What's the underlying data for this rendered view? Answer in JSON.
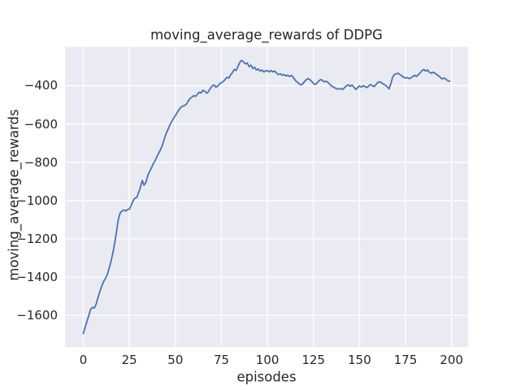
{
  "style": {
    "figure_background": "#ffffff",
    "axes_background": "#eaeaf2",
    "grid_color": "#ffffff",
    "text_color": "#262626",
    "line_color": "#4c72b0"
  },
  "chart_data": {
    "type": "line",
    "title": "moving_average_rewards of DDPG",
    "xlabel": "episodes",
    "ylabel": "moving_average_rewards",
    "grid": true,
    "legend": false,
    "xlim": [
      -9.95,
      208.95
    ],
    "ylim": [
      -1766,
      -197
    ],
    "xticks": [
      0,
      25,
      50,
      75,
      100,
      125,
      150,
      175,
      200
    ],
    "yticks": [
      -400,
      -600,
      -800,
      -1000,
      -1200,
      -1400,
      -1600
    ],
    "series": [
      {
        "name": "moving_average_rewards",
        "color": "#4c72b0",
        "x": [
          0,
          1,
          2,
          3,
          4,
          5,
          6,
          7,
          8,
          9,
          10,
          11,
          12,
          13,
          14,
          15,
          16,
          17,
          18,
          19,
          20,
          21,
          22,
          23,
          24,
          25,
          26,
          27,
          28,
          29,
          30,
          31,
          32,
          33,
          34,
          35,
          36,
          37,
          38,
          39,
          40,
          41,
          42,
          43,
          44,
          45,
          46,
          47,
          48,
          49,
          50,
          51,
          52,
          53,
          54,
          55,
          56,
          57,
          58,
          59,
          60,
          61,
          62,
          63,
          64,
          65,
          66,
          67,
          68,
          69,
          70,
          71,
          72,
          73,
          74,
          75,
          76,
          77,
          78,
          79,
          80,
          81,
          82,
          83,
          84,
          85,
          86,
          87,
          88,
          89,
          90,
          91,
          92,
          93,
          94,
          95,
          96,
          97,
          98,
          99,
          100,
          101,
          102,
          103,
          104,
          105,
          106,
          107,
          108,
          109,
          110,
          111,
          112,
          113,
          114,
          115,
          116,
          117,
          118,
          119,
          120,
          121,
          122,
          123,
          124,
          125,
          126,
          127,
          128,
          129,
          130,
          131,
          132,
          133,
          134,
          135,
          136,
          137,
          138,
          139,
          140,
          141,
          142,
          143,
          144,
          145,
          146,
          147,
          148,
          149,
          150,
          151,
          152,
          153,
          154,
          155,
          156,
          157,
          158,
          159,
          160,
          161,
          162,
          163,
          164,
          165,
          166,
          167,
          168,
          169,
          170,
          171,
          172,
          173,
          174,
          175,
          176,
          177,
          178,
          179,
          180,
          181,
          182,
          183,
          184,
          185,
          186,
          187,
          188,
          189,
          190,
          191,
          192,
          193,
          194,
          195,
          196,
          197,
          198,
          199
        ],
        "y": [
          -1695,
          -1662,
          -1631,
          -1600,
          -1568,
          -1558,
          -1562,
          -1540,
          -1506,
          -1475,
          -1448,
          -1424,
          -1408,
          -1388,
          -1355,
          -1320,
          -1276,
          -1225,
          -1165,
          -1100,
          -1065,
          -1055,
          -1050,
          -1055,
          -1048,
          -1045,
          -1025,
          -1003,
          -988,
          -985,
          -960,
          -932,
          -895,
          -920,
          -905,
          -870,
          -848,
          -830,
          -808,
          -792,
          -770,
          -752,
          -733,
          -710,
          -678,
          -650,
          -628,
          -606,
          -588,
          -570,
          -558,
          -540,
          -525,
          -513,
          -507,
          -504,
          -497,
          -480,
          -467,
          -460,
          -452,
          -456,
          -445,
          -434,
          -438,
          -424,
          -429,
          -440,
          -431,
          -414,
          -402,
          -396,
          -408,
          -403,
          -390,
          -384,
          -378,
          -368,
          -356,
          -361,
          -344,
          -331,
          -315,
          -321,
          -300,
          -279,
          -268,
          -276,
          -286,
          -281,
          -300,
          -293,
          -310,
          -304,
          -318,
          -313,
          -324,
          -318,
          -328,
          -324,
          -321,
          -328,
          -321,
          -328,
          -324,
          -335,
          -342,
          -338,
          -346,
          -342,
          -349,
          -345,
          -352,
          -346,
          -356,
          -370,
          -380,
          -388,
          -396,
          -392,
          -380,
          -370,
          -363,
          -368,
          -377,
          -388,
          -394,
          -385,
          -374,
          -368,
          -374,
          -380,
          -377,
          -384,
          -394,
          -403,
          -408,
          -414,
          -417,
          -418,
          -415,
          -420,
          -409,
          -400,
          -396,
          -403,
          -397,
          -408,
          -420,
          -410,
          -401,
          -408,
          -400,
          -405,
          -410,
          -401,
          -394,
          -400,
          -405,
          -394,
          -383,
          -380,
          -385,
          -392,
          -397,
          -405,
          -417,
          -392,
          -356,
          -342,
          -338,
          -335,
          -342,
          -349,
          -356,
          -360,
          -358,
          -363,
          -359,
          -352,
          -346,
          -352,
          -342,
          -333,
          -321,
          -316,
          -324,
          -318,
          -330,
          -335,
          -330,
          -335,
          -342,
          -349,
          -358,
          -365,
          -360,
          -366,
          -374,
          -377
        ]
      }
    ]
  }
}
